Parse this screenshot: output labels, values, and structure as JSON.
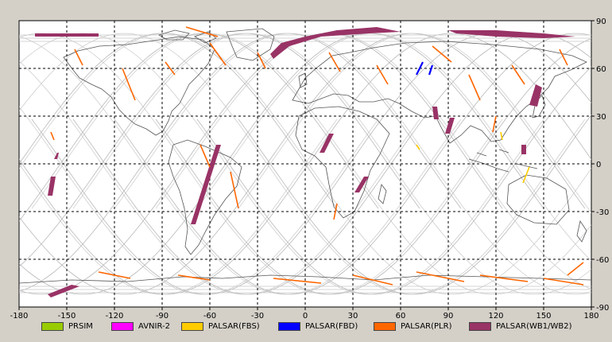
{
  "chart_data": {
    "type": "map",
    "projection": "equirectangular",
    "x_ticks": [
      "-180",
      "-150",
      "-120",
      "-90",
      "-60",
      "-30",
      "0",
      "30",
      "60",
      "90",
      "120",
      "150",
      "180"
    ],
    "y_ticks": [
      "90",
      "60",
      "30",
      "0",
      "-30",
      "-60",
      "-90"
    ],
    "xlim": [
      -180,
      180
    ],
    "ylim": [
      -90,
      90
    ],
    "grid": true,
    "legend_position": "bottom",
    "legend": [
      {
        "label": "PRSIM",
        "color": "#99cc00"
      },
      {
        "label": "AVNIR-2",
        "color": "#ff00ff"
      },
      {
        "label": "PALSAR(FBS)",
        "color": "#ffcc00"
      },
      {
        "label": "PALSAR(FBD)",
        "color": "#0000ff"
      },
      {
        "label": "PALSAR(PLR)",
        "color": "#ff6600"
      },
      {
        "label": "PALSAR(WB1/WB2)",
        "color": "#993366"
      }
    ],
    "wb_swaths": [
      {
        "poly": [
          [
            -170,
            82
          ],
          [
            -130,
            82
          ],
          [
            -130,
            80
          ],
          [
            -170,
            80
          ]
        ]
      },
      {
        "poly": [
          [
            -22,
            69
          ],
          [
            -15,
            76
          ],
          [
            0,
            80
          ],
          [
            20,
            84
          ],
          [
            45,
            86
          ],
          [
            60,
            83
          ],
          [
            40,
            82
          ],
          [
            10,
            80
          ],
          [
            -10,
            74
          ],
          [
            -20,
            66
          ]
        ]
      },
      {
        "poly": [
          [
            90,
            84
          ],
          [
            120,
            84
          ],
          [
            150,
            82
          ],
          [
            170,
            80
          ],
          [
            150,
            79
          ],
          [
            120,
            80
          ],
          [
            95,
            82
          ]
        ]
      },
      {
        "poly": [
          [
            -162,
            -82
          ],
          [
            -147,
            -76
          ],
          [
            -142,
            -77
          ],
          [
            -160,
            -84
          ]
        ]
      },
      {
        "poly": [
          [
            -156,
            7
          ],
          [
            -155,
            7
          ],
          [
            -156,
            3
          ],
          [
            -158,
            3
          ]
        ]
      },
      {
        "poly": [
          [
            -160,
            -8
          ],
          [
            -157,
            -8
          ],
          [
            -159,
            -20
          ],
          [
            -162,
            -20
          ]
        ]
      },
      {
        "poly": [
          [
            -56,
            12
          ],
          [
            -53,
            12
          ],
          [
            -69,
            -38
          ],
          [
            -72,
            -38
          ]
        ]
      },
      {
        "poly": [
          [
            15,
            19
          ],
          [
            18,
            19
          ],
          [
            12,
            7
          ],
          [
            9,
            7
          ]
        ]
      },
      {
        "poly": [
          [
            37,
            -8
          ],
          [
            40,
            -8
          ],
          [
            34,
            -18
          ],
          [
            31,
            -18
          ]
        ]
      },
      {
        "poly": [
          [
            80,
            36
          ],
          [
            83,
            36
          ],
          [
            84,
            28
          ],
          [
            81,
            28
          ]
        ]
      },
      {
        "poly": [
          [
            91,
            29
          ],
          [
            94,
            29
          ],
          [
            91,
            19
          ],
          [
            88,
            19
          ]
        ]
      },
      {
        "poly": [
          [
            145,
            50
          ],
          [
            149,
            48
          ],
          [
            146,
            36
          ],
          [
            141,
            37
          ]
        ]
      },
      {
        "poly": [
          [
            136,
            12
          ],
          [
            139,
            12
          ],
          [
            139,
            6
          ],
          [
            136,
            6
          ]
        ]
      }
    ],
    "plr_segments": [
      {
        "line": [
          [
            -145,
            72
          ],
          [
            -140,
            62
          ]
        ]
      },
      {
        "line": [
          [
            -115,
            60
          ],
          [
            -107,
            40
          ]
        ]
      },
      {
        "line": [
          [
            -88,
            64
          ],
          [
            -82,
            56
          ]
        ]
      },
      {
        "line": [
          [
            -75,
            86
          ],
          [
            -55,
            80
          ]
        ]
      },
      {
        "line": [
          [
            -60,
            76
          ],
          [
            -50,
            62
          ]
        ]
      },
      {
        "line": [
          [
            -30,
            70
          ],
          [
            -25,
            60
          ]
        ]
      },
      {
        "line": [
          [
            -66,
            12
          ],
          [
            -60,
            -2
          ]
        ]
      },
      {
        "line": [
          [
            -47,
            -5
          ],
          [
            -42,
            -28
          ]
        ]
      },
      {
        "line": [
          [
            15,
            70
          ],
          [
            22,
            58
          ]
        ]
      },
      {
        "line": [
          [
            45,
            62
          ],
          [
            52,
            50
          ]
        ]
      },
      {
        "line": [
          [
            80,
            74
          ],
          [
            92,
            64
          ]
        ]
      },
      {
        "line": [
          [
            103,
            56
          ],
          [
            110,
            40
          ]
        ]
      },
      {
        "line": [
          [
            130,
            62
          ],
          [
            138,
            50
          ]
        ]
      },
      {
        "line": [
          [
            160,
            72
          ],
          [
            165,
            62
          ]
        ]
      },
      {
        "line": [
          [
            -160,
            20
          ],
          [
            -158,
            15
          ]
        ]
      },
      {
        "line": [
          [
            20,
            -25
          ],
          [
            18,
            -35
          ]
        ]
      },
      {
        "line": [
          [
            120,
            30
          ],
          [
            118,
            20
          ]
        ]
      },
      {
        "line": [
          [
            175,
            -62
          ],
          [
            165,
            -70
          ]
        ]
      },
      {
        "line": [
          [
            -130,
            -68
          ],
          [
            -110,
            -72
          ]
        ]
      },
      {
        "line": [
          [
            -80,
            -70
          ],
          [
            -60,
            -73
          ]
        ]
      },
      {
        "line": [
          [
            -20,
            -72
          ],
          [
            10,
            -75
          ]
        ]
      },
      {
        "line": [
          [
            30,
            -70
          ],
          [
            55,
            -76
          ]
        ]
      },
      {
        "line": [
          [
            70,
            -68
          ],
          [
            100,
            -74
          ]
        ]
      },
      {
        "line": [
          [
            110,
            -70
          ],
          [
            140,
            -74
          ]
        ]
      },
      {
        "line": [
          [
            150,
            -72
          ],
          [
            175,
            -76
          ]
        ]
      }
    ],
    "fbs_segments": [
      {
        "line": [
          [
            123,
            20
          ],
          [
            124,
            15
          ]
        ]
      },
      {
        "line": [
          [
            141,
            -2
          ],
          [
            137,
            -12
          ]
        ]
      },
      {
        "line": [
          [
            70,
            12
          ],
          [
            72,
            9
          ]
        ]
      }
    ],
    "fbd_segments": [
      {
        "line": [
          [
            74,
            64
          ],
          [
            70,
            56
          ]
        ]
      },
      {
        "line": [
          [
            80,
            62
          ],
          [
            78,
            56
          ]
        ]
      }
    ]
  }
}
